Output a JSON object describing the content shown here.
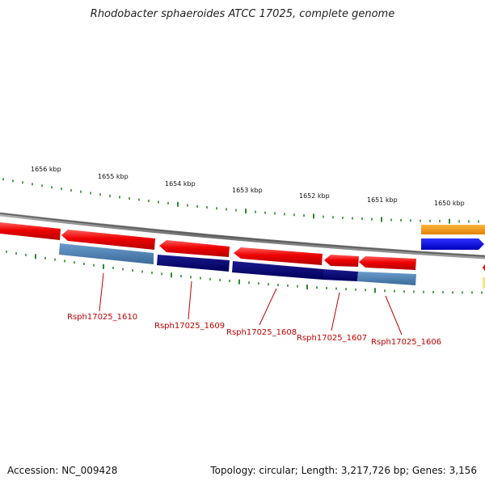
{
  "title": "Rhodobacter sphaeroides ATCC 17025, complete genome",
  "footer": {
    "accession": "Accession: NC_009428",
    "topology": "Topology: circular; Length: 3,217,726 bp; Genes: 3,156"
  },
  "ticks": [
    "1656 kbp",
    "1655 kbp",
    "1654 kbp",
    "1653 kbp",
    "1652 kbp",
    "1651 kbp",
    "1650 kbp"
  ],
  "genes": [
    "Rsph17025_1610",
    "Rsph17025_1609",
    "Rsph17025_1608",
    "Rsph17025_1607",
    "Rsph17025_1606"
  ],
  "colors": {
    "forward_cds": "#ee0000",
    "reverse_block_light": "#4a7fb5",
    "reverse_block_dark": "#0a0a7a",
    "backbone": "#808080",
    "ticks": "#2a8a2a",
    "orange_feature": "#ff9900",
    "blue_feature": "#0000ee",
    "label": "#c00000"
  }
}
